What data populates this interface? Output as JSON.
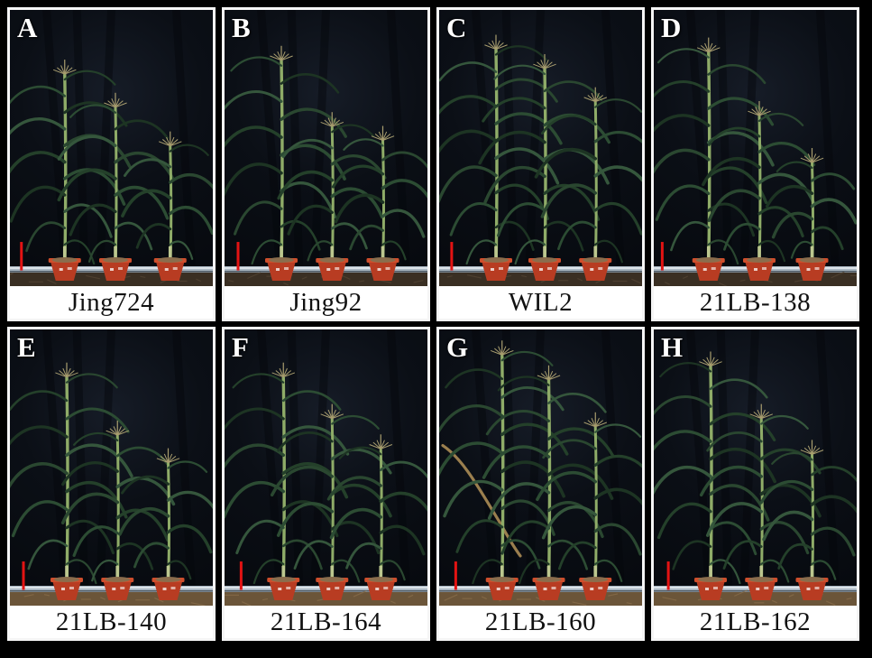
{
  "figure": {
    "description": "Eight-panel maize plant phenotype photo figure; each panel shows three potted maize plants of decreasing height against a black cloth backdrop with a red scale bar",
    "plants_per_panel": 3,
    "scale_bar": {
      "color": "#e31313",
      "top": 0.84,
      "height": 0.103
    },
    "palette": {
      "background": "#000000",
      "frame": "#f5f5f5",
      "letter_color": "#ffffff",
      "caption_bg": "#ffffff",
      "caption_color": "#111111",
      "leaf_greens": [
        "#24402a",
        "#2c4c33",
        "#1d3423",
        "#35563c",
        "#2a4730"
      ],
      "stem": "#8fac68",
      "stem_base": "#bcc78f",
      "tassel": "#a99e6f",
      "pot_body": "#b83c22",
      "pot_rim": "#cf4e2c",
      "pot_soil": "#8a6d4d",
      "pipe": "#aab7c2",
      "ground_row1": "#3a2f23",
      "ground_row2": "#6b5539",
      "dried_leaf": "#9b7f4e"
    },
    "panels": [
      {
        "letter": "A",
        "caption": "Jing724",
        "plants": [
          {
            "x": 0.27,
            "h": 0.82
          },
          {
            "x": 0.52,
            "h": 0.7
          },
          {
            "x": 0.79,
            "h": 0.56
          }
        ],
        "scale_bar_x": 0.05
      },
      {
        "letter": "B",
        "caption": "Jing92",
        "plants": [
          {
            "x": 0.28,
            "h": 0.87
          },
          {
            "x": 0.53,
            "h": 0.63
          },
          {
            "x": 0.78,
            "h": 0.58
          }
        ],
        "scale_bar_x": 0.06
      },
      {
        "letter": "C",
        "caption": "WIL2",
        "plants": [
          {
            "x": 0.28,
            "h": 0.91
          },
          {
            "x": 0.52,
            "h": 0.84
          },
          {
            "x": 0.77,
            "h": 0.72
          }
        ],
        "scale_bar_x": 0.055
      },
      {
        "letter": "D",
        "caption": "21LB-138",
        "plants": [
          {
            "x": 0.27,
            "h": 0.9
          },
          {
            "x": 0.52,
            "h": 0.67
          },
          {
            "x": 0.78,
            "h": 0.5
          }
        ],
        "scale_bar_x": 0.035
      },
      {
        "letter": "E",
        "caption": "21LB-140",
        "plants": [
          {
            "x": 0.28,
            "h": 0.88
          },
          {
            "x": 0.53,
            "h": 0.67
          },
          {
            "x": 0.78,
            "h": 0.57
          }
        ],
        "scale_bar_x": 0.06
      },
      {
        "letter": "F",
        "caption": "21LB-164",
        "plants": [
          {
            "x": 0.29,
            "h": 0.88
          },
          {
            "x": 0.53,
            "h": 0.73
          },
          {
            "x": 0.77,
            "h": 0.62
          }
        ],
        "scale_bar_x": 0.075
      },
      {
        "letter": "G",
        "caption": "21LB-160",
        "dried_leaf": true,
        "plants": [
          {
            "x": 0.31,
            "h": 0.96
          },
          {
            "x": 0.54,
            "h": 0.87
          },
          {
            "x": 0.77,
            "h": 0.7
          }
        ],
        "scale_bar_x": 0.075
      },
      {
        "letter": "H",
        "caption": "21LB-162",
        "plants": [
          {
            "x": 0.28,
            "h": 0.92
          },
          {
            "x": 0.53,
            "h": 0.73
          },
          {
            "x": 0.78,
            "h": 0.6
          }
        ],
        "scale_bar_x": 0.065
      }
    ]
  }
}
